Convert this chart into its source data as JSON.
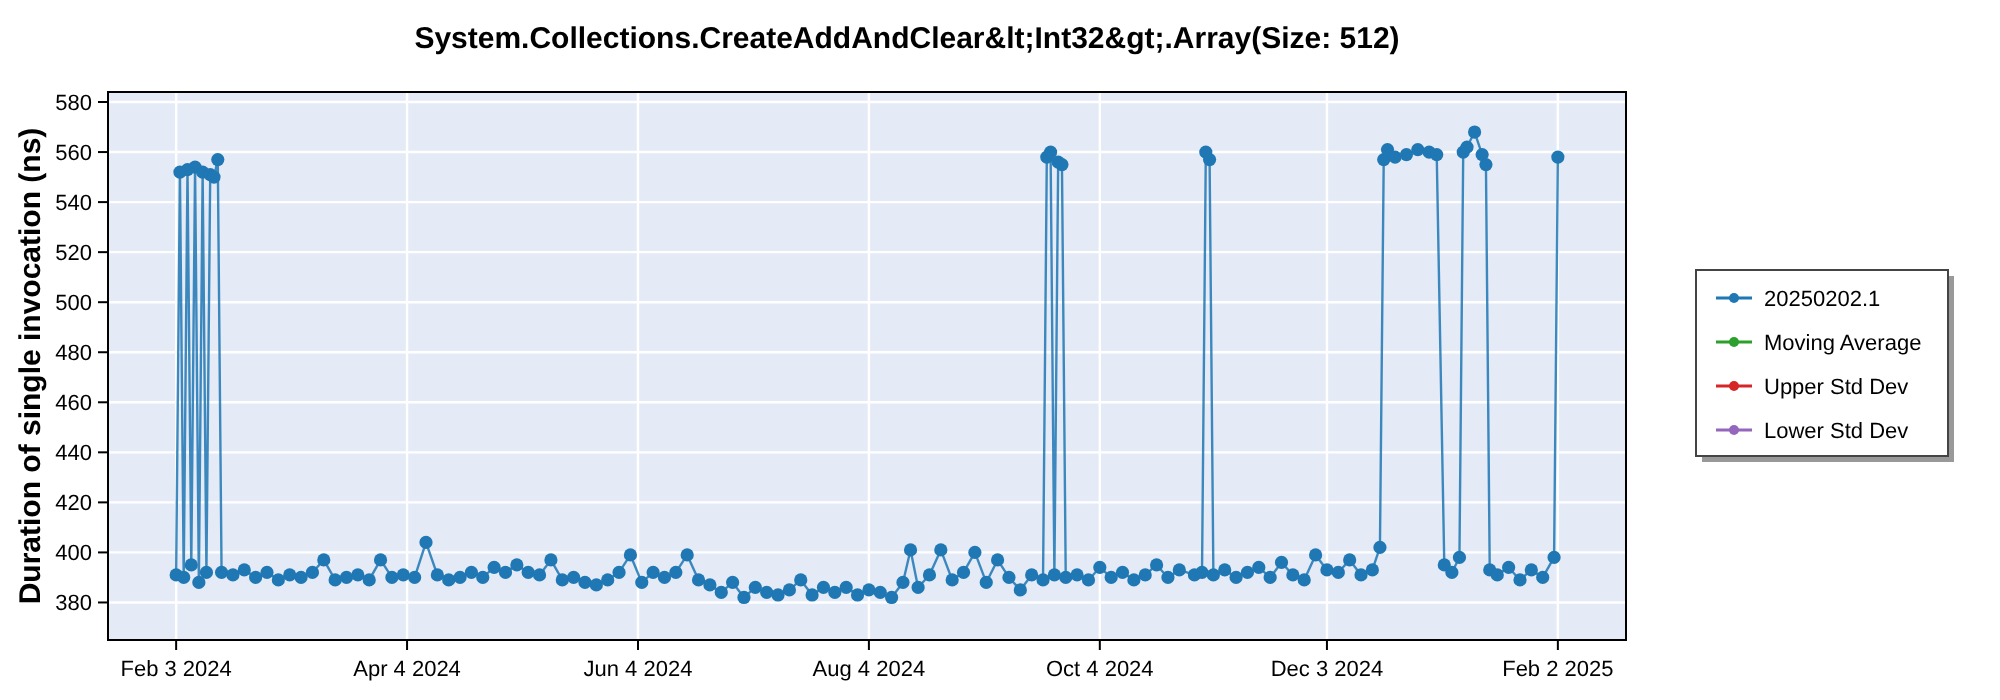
{
  "chart_data": {
    "type": "line",
    "title": "System.Collections.CreateAddAndClear&lt;Int32&gt;.Array(Size: 512)",
    "ylabel": "Duration of single invocation (ns)",
    "xlim": [
      "2024-01-16",
      "2025-02-20"
    ],
    "ylim": [
      365,
      584
    ],
    "xticks": [
      {
        "value": "2024-02-03",
        "label": "Feb 3 2024"
      },
      {
        "value": "2024-04-04",
        "label": "Apr 4 2024"
      },
      {
        "value": "2024-06-04",
        "label": "Jun 4 2024"
      },
      {
        "value": "2024-08-04",
        "label": "Aug 4 2024"
      },
      {
        "value": "2024-10-04",
        "label": "Oct 4 2024"
      },
      {
        "value": "2024-12-03",
        "label": "Dec 3 2024"
      },
      {
        "value": "2025-02-02",
        "label": "Feb 2 2025"
      }
    ],
    "yticks": [
      380,
      400,
      420,
      440,
      460,
      480,
      500,
      520,
      540,
      560,
      580
    ],
    "grid": true,
    "legend": "right",
    "marker": "circle",
    "line_style": "solid",
    "series": [
      {
        "name": "20250202.1",
        "color": "#1f77b4",
        "x": [
          "2024-02-03",
          "2024-02-04",
          "2024-02-05",
          "2024-02-06",
          "2024-02-07",
          "2024-02-08",
          "2024-02-09",
          "2024-02-10",
          "2024-02-11",
          "2024-02-12",
          "2024-02-13",
          "2024-02-14",
          "2024-02-15",
          "2024-02-18",
          "2024-02-21",
          "2024-02-24",
          "2024-02-27",
          "2024-03-01",
          "2024-03-04",
          "2024-03-07",
          "2024-03-10",
          "2024-03-13",
          "2024-03-16",
          "2024-03-19",
          "2024-03-22",
          "2024-03-25",
          "2024-03-28",
          "2024-03-31",
          "2024-04-03",
          "2024-04-06",
          "2024-04-09",
          "2024-04-12",
          "2024-04-15",
          "2024-04-18",
          "2024-04-21",
          "2024-04-24",
          "2024-04-27",
          "2024-04-30",
          "2024-05-03",
          "2024-05-06",
          "2024-05-09",
          "2024-05-12",
          "2024-05-15",
          "2024-05-18",
          "2024-05-21",
          "2024-05-24",
          "2024-05-27",
          "2024-05-30",
          "2024-06-02",
          "2024-06-05",
          "2024-06-08",
          "2024-06-11",
          "2024-06-14",
          "2024-06-17",
          "2024-06-20",
          "2024-06-23",
          "2024-06-26",
          "2024-06-29",
          "2024-07-02",
          "2024-07-05",
          "2024-07-08",
          "2024-07-11",
          "2024-07-14",
          "2024-07-17",
          "2024-07-20",
          "2024-07-23",
          "2024-07-26",
          "2024-07-29",
          "2024-08-01",
          "2024-08-04",
          "2024-08-07",
          "2024-08-10",
          "2024-08-13",
          "2024-08-15",
          "2024-08-17",
          "2024-08-20",
          "2024-08-23",
          "2024-08-26",
          "2024-08-29",
          "2024-09-01",
          "2024-09-04",
          "2024-09-07",
          "2024-09-10",
          "2024-09-13",
          "2024-09-16",
          "2024-09-19",
          "2024-09-20",
          "2024-09-21",
          "2024-09-22",
          "2024-09-23",
          "2024-09-24",
          "2024-09-25",
          "2024-09-28",
          "2024-10-01",
          "2024-10-04",
          "2024-10-07",
          "2024-10-10",
          "2024-10-13",
          "2024-10-16",
          "2024-10-19",
          "2024-10-22",
          "2024-10-25",
          "2024-10-29",
          "2024-10-31",
          "2024-11-01",
          "2024-11-02",
          "2024-11-03",
          "2024-11-06",
          "2024-11-09",
          "2024-11-12",
          "2024-11-15",
          "2024-11-18",
          "2024-11-21",
          "2024-11-24",
          "2024-11-27",
          "2024-11-30",
          "2024-12-03",
          "2024-12-06",
          "2024-12-09",
          "2024-12-12",
          "2024-12-15",
          "2024-12-17",
          "2024-12-18",
          "2024-12-19",
          "2024-12-21",
          "2024-12-24",
          "2024-12-27",
          "2024-12-30",
          "2025-01-01",
          "2025-01-03",
          "2025-01-05",
          "2025-01-07",
          "2025-01-08",
          "2025-01-09",
          "2025-01-11",
          "2025-01-13",
          "2025-01-14",
          "2025-01-15",
          "2025-01-17",
          "2025-01-20",
          "2025-01-23",
          "2025-01-26",
          "2025-01-29",
          "2025-02-01",
          "2025-02-02"
        ],
        "values": [
          391,
          552,
          390,
          553,
          395,
          554,
          388,
          552,
          392,
          551,
          550,
          557,
          392,
          391,
          393,
          390,
          392,
          389,
          391,
          390,
          392,
          397,
          389,
          390,
          391,
          389,
          397,
          390,
          391,
          390,
          404,
          391,
          389,
          390,
          392,
          390,
          394,
          392,
          395,
          392,
          391,
          397,
          389,
          390,
          388,
          387,
          389,
          392,
          399,
          388,
          392,
          390,
          392,
          399,
          389,
          387,
          384,
          388,
          382,
          386,
          384,
          383,
          385,
          389,
          383,
          386,
          384,
          386,
          383,
          385,
          384,
          382,
          388,
          401,
          386,
          391,
          401,
          389,
          392,
          400,
          388,
          397,
          390,
          385,
          391,
          389,
          558,
          560,
          391,
          556,
          555,
          390,
          391,
          389,
          394,
          390,
          392,
          389,
          391,
          395,
          390,
          393,
          391,
          392,
          560,
          557,
          391,
          393,
          390,
          392,
          394,
          390,
          396,
          391,
          389,
          399,
          393,
          392,
          397,
          391,
          393,
          402,
          557,
          561,
          558,
          559,
          561,
          560,
          559,
          395,
          392,
          398,
          560,
          562,
          568,
          559,
          555,
          393,
          391,
          394,
          389,
          393,
          390,
          398,
          558
        ]
      },
      {
        "name": "Moving Average",
        "color": "#2ca02c"
      },
      {
        "name": "Upper Std Dev",
        "color": "#d62728"
      },
      {
        "name": "Lower Std Dev",
        "color": "#9467bd"
      }
    ]
  }
}
